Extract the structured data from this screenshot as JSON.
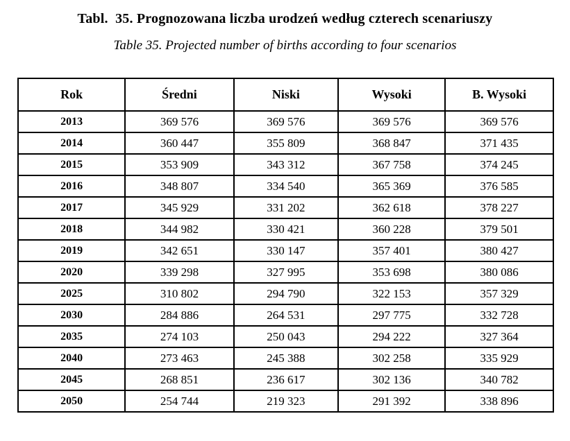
{
  "page": {
    "title": "Tabl.  35. Prognozowana liczba urodzeń według czterech scenariuszy",
    "subtitle": "Table 35. Projected number of births according to four scenarios"
  },
  "table": {
    "columns": [
      "Rok",
      "Średni",
      "Niski",
      "Wysoki",
      "B. Wysoki"
    ],
    "rows": [
      {
        "rok": "2013",
        "values": [
          "369 576",
          "369 576",
          "369 576",
          "369 576"
        ]
      },
      {
        "rok": "2014",
        "values": [
          "360 447",
          "355 809",
          "368 847",
          "371 435"
        ]
      },
      {
        "rok": "2015",
        "values": [
          "353 909",
          "343 312",
          "367 758",
          "374 245"
        ]
      },
      {
        "rok": "2016",
        "values": [
          "348 807",
          "334 540",
          "365 369",
          "376 585"
        ]
      },
      {
        "rok": "2017",
        "values": [
          "345 929",
          "331 202",
          "362 618",
          "378 227"
        ]
      },
      {
        "rok": "2018",
        "values": [
          "344 982",
          "330 421",
          "360 228",
          "379 501"
        ]
      },
      {
        "rok": "2019",
        "values": [
          "342 651",
          "330 147",
          "357 401",
          "380 427"
        ]
      },
      {
        "rok": "2020",
        "values": [
          "339 298",
          "327 995",
          "353 698",
          "380 086"
        ]
      },
      {
        "rok": "2025",
        "values": [
          "310 802",
          "294 790",
          "322 153",
          "357 329"
        ]
      },
      {
        "rok": "2030",
        "values": [
          "284 886",
          "264 531",
          "297 775",
          "332 728"
        ]
      },
      {
        "rok": "2035",
        "values": [
          "274 103",
          "250 043",
          "294 222",
          "327 364"
        ]
      },
      {
        "rok": "2040",
        "values": [
          "273 463",
          "245 388",
          "302 258",
          "335 929"
        ]
      },
      {
        "rok": "2045",
        "values": [
          "268 851",
          "236 617",
          "302 136",
          "340 782"
        ]
      },
      {
        "rok": "2050",
        "values": [
          "254 744",
          "219 323",
          "291 392",
          "338 896"
        ]
      }
    ]
  },
  "colors": {
    "text": "#000000",
    "border": "#000000",
    "background": "#ffffff"
  }
}
